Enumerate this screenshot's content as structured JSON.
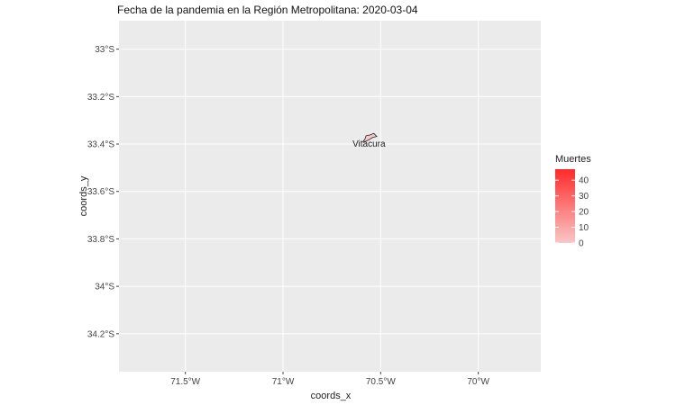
{
  "chart_data": {
    "type": "map",
    "title": "Fecha de la pandemia en la Región Metropolitana: 2020-03-04",
    "xlabel": "coords_x",
    "ylabel": "coords_y",
    "xlim": [
      -71.84,
      -69.68
    ],
    "ylim": [
      -34.36,
      -32.88
    ],
    "x_ticks": [
      {
        "value": -71.5,
        "label": "71.5°W"
      },
      {
        "value": -71.0,
        "label": "71°W"
      },
      {
        "value": -70.5,
        "label": "70.5°W"
      },
      {
        "value": -70.0,
        "label": "70°W"
      }
    ],
    "y_ticks": [
      {
        "value": -33.0,
        "label": "33°S"
      },
      {
        "value": -33.2,
        "label": "33.2°S"
      },
      {
        "value": -33.4,
        "label": "33.4°S"
      },
      {
        "value": -33.6,
        "label": "33.6°S"
      },
      {
        "value": -33.8,
        "label": "33.8°S"
      },
      {
        "value": -34.0,
        "label": "34°S"
      },
      {
        "value": -34.2,
        "label": "34.2°S"
      }
    ],
    "grid": true,
    "background_color": "#ebebeb",
    "regions": [
      {
        "name": "Vitacura",
        "muertes": 3,
        "fill": "#f9c7c7",
        "outline": [
          [
            -70.555,
            -33.362
          ],
          [
            -70.535,
            -33.355
          ],
          [
            -70.52,
            -33.368
          ],
          [
            -70.54,
            -33.372
          ],
          [
            -70.56,
            -33.382
          ],
          [
            -70.575,
            -33.388
          ],
          [
            -70.59,
            -33.39
          ],
          [
            -70.58,
            -33.378
          ],
          [
            -70.575,
            -33.365
          ]
        ],
        "label_pos": [
          -70.56,
          -33.4
        ]
      }
    ],
    "legend": {
      "title": "Muertes",
      "placement": "right",
      "min": 0,
      "max": 47,
      "ticks": [
        0,
        10,
        20,
        30,
        40
      ],
      "color_low": "#f9c7c7",
      "color_high": "#ff2a2a"
    }
  }
}
